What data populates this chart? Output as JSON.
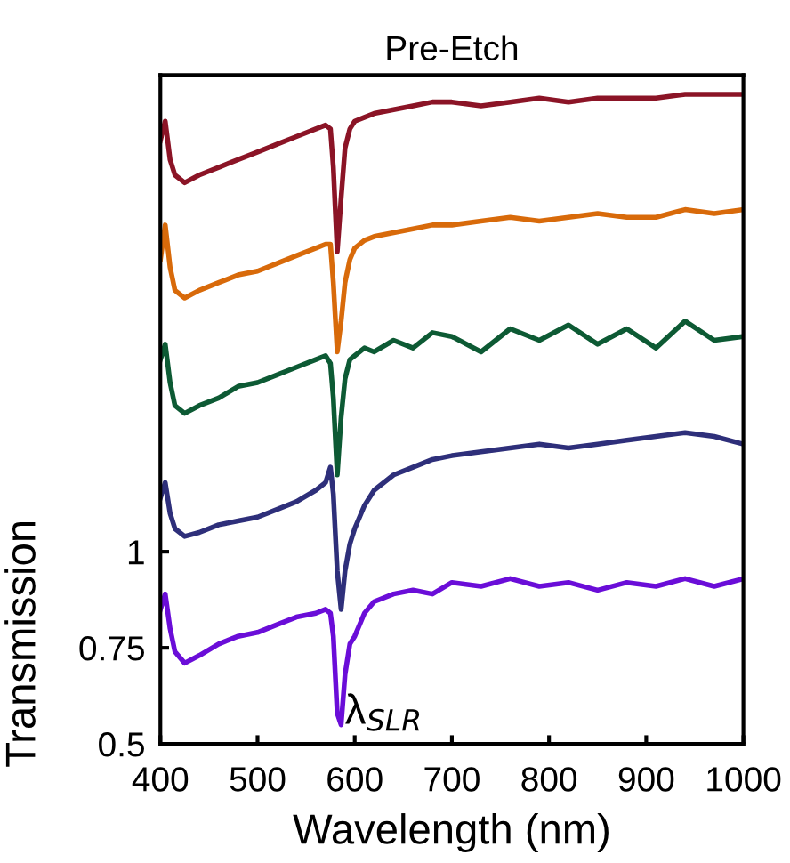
{
  "chart_data": {
    "type": "line",
    "title": "Pre-Etch",
    "xlabel": "Wavelength (nm)",
    "ylabel": "Transmission",
    "x": [
      400,
      405,
      410,
      415,
      425,
      440,
      460,
      480,
      500,
      520,
      540,
      560,
      570,
      575,
      578,
      582,
      586,
      590,
      595,
      600,
      610,
      620,
      640,
      660,
      680,
      700,
      730,
      760,
      790,
      820,
      850,
      880,
      910,
      940,
      970,
      1000
    ],
    "series": [
      {
        "color": "#6a0dd8",
        "values": [
          0.85,
          0.89,
          0.8,
          0.74,
          0.71,
          0.73,
          0.76,
          0.78,
          0.79,
          0.81,
          0.83,
          0.84,
          0.85,
          0.84,
          0.78,
          0.58,
          0.55,
          0.68,
          0.76,
          0.78,
          0.84,
          0.87,
          0.89,
          0.9,
          0.89,
          0.92,
          0.91,
          0.93,
          0.91,
          0.92,
          0.9,
          0.92,
          0.91,
          0.93,
          0.91,
          0.93
        ]
      },
      {
        "color": "#2e2f7a",
        "values": [
          1.14,
          1.18,
          1.1,
          1.06,
          1.04,
          1.05,
          1.07,
          1.08,
          1.09,
          1.11,
          1.13,
          1.16,
          1.18,
          1.22,
          1.15,
          0.95,
          0.85,
          0.95,
          1.02,
          1.06,
          1.12,
          1.16,
          1.2,
          1.22,
          1.24,
          1.25,
          1.26,
          1.27,
          1.28,
          1.27,
          1.28,
          1.29,
          1.3,
          1.31,
          1.3,
          1.28
        ]
      },
      {
        "color": "#0d5a34",
        "values": [
          1.5,
          1.54,
          1.44,
          1.38,
          1.36,
          1.38,
          1.4,
          1.43,
          1.44,
          1.46,
          1.48,
          1.5,
          1.51,
          1.49,
          1.4,
          1.2,
          1.35,
          1.45,
          1.5,
          1.51,
          1.53,
          1.52,
          1.55,
          1.53,
          1.57,
          1.56,
          1.52,
          1.58,
          1.55,
          1.59,
          1.54,
          1.58,
          1.53,
          1.6,
          1.55,
          1.56
        ]
      },
      {
        "color": "#d86a0a",
        "values": [
          1.76,
          1.85,
          1.74,
          1.68,
          1.66,
          1.68,
          1.7,
          1.72,
          1.73,
          1.75,
          1.77,
          1.79,
          1.8,
          1.8,
          1.7,
          1.52,
          1.6,
          1.7,
          1.76,
          1.79,
          1.81,
          1.82,
          1.83,
          1.84,
          1.85,
          1.85,
          1.86,
          1.87,
          1.86,
          1.87,
          1.88,
          1.87,
          1.87,
          1.89,
          1.88,
          1.89
        ]
      },
      {
        "color": "#8b1426",
        "values": [
          2.07,
          2.12,
          2.02,
          1.98,
          1.96,
          1.98,
          2.0,
          2.02,
          2.04,
          2.06,
          2.08,
          2.1,
          2.11,
          2.1,
          2.0,
          1.78,
          1.92,
          2.05,
          2.1,
          2.12,
          2.13,
          2.14,
          2.15,
          2.16,
          2.17,
          2.17,
          2.16,
          2.17,
          2.18,
          2.17,
          2.18,
          2.18,
          2.18,
          2.19,
          2.19,
          2.19
        ]
      }
    ],
    "xlim": [
      400,
      1000
    ],
    "xticks": [
      400,
      500,
      600,
      700,
      800,
      900,
      1000
    ],
    "ylim": [
      0.5,
      2.24
    ],
    "yticks": [
      0.5,
      0.75,
      1
    ],
    "annotations": [
      {
        "text": "λ$_{SLR}$",
        "x": 590,
        "y": 0.58
      }
    ],
    "grid": false
  }
}
